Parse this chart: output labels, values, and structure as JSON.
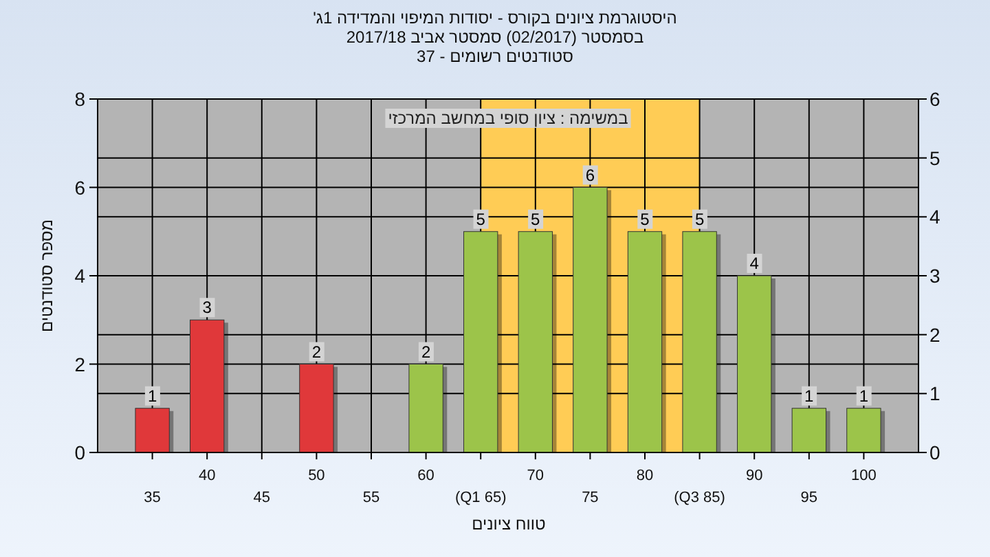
{
  "chart_data": {
    "type": "bar",
    "title": "היסטוגרמת ציונים בקורס - יסודות המיפוי והמדידה 1ג'",
    "subtitle": "בסמסטר (02/2017) סמסטר אביב 2017/18\nסטודנטים רשומים - 37",
    "xlabel": "טווח ציונים",
    "ylabel": "מספר סטודנטים",
    "annotations": [
      "במשימה : ציון סופי במחשב המרכזי"
    ],
    "categories": [
      "35",
      "40",
      "45",
      "50",
      "55",
      "60",
      "(Q1 65)",
      "70",
      "75",
      "80",
      "(Q3 85)",
      "90",
      "95",
      "100"
    ],
    "values": [
      1,
      3,
      0,
      2,
      0,
      2,
      5,
      5,
      6,
      5,
      5,
      4,
      1,
      1
    ],
    "value_labels": [
      "1",
      "3",
      null,
      "2",
      null,
      "2",
      "5",
      "5",
      "6",
      "5",
      "5",
      "4",
      "1",
      "1"
    ],
    "colors": [
      "#e0383a",
      "#e0383a",
      "#e0383a",
      "#e0383a",
      "#e0383a",
      "#9cc44a",
      "#9cc44a",
      "#9cc44a",
      "#9cc44a",
      "#9cc44a",
      "#9cc44a",
      "#9cc44a",
      "#9cc44a",
      "#9cc44a"
    ],
    "ylim": [
      0,
      8
    ],
    "yticks": [
      0,
      2,
      4,
      6,
      8
    ],
    "y2lim": [
      0,
      6
    ],
    "y2ticks": [
      0,
      1,
      2,
      3,
      4,
      5,
      6
    ],
    "bands": [
      {
        "axis": "x",
        "from": "(Q1 65)",
        "to": "(Q3 85)",
        "color": "#ffcc55"
      }
    ],
    "grid": true
  }
}
